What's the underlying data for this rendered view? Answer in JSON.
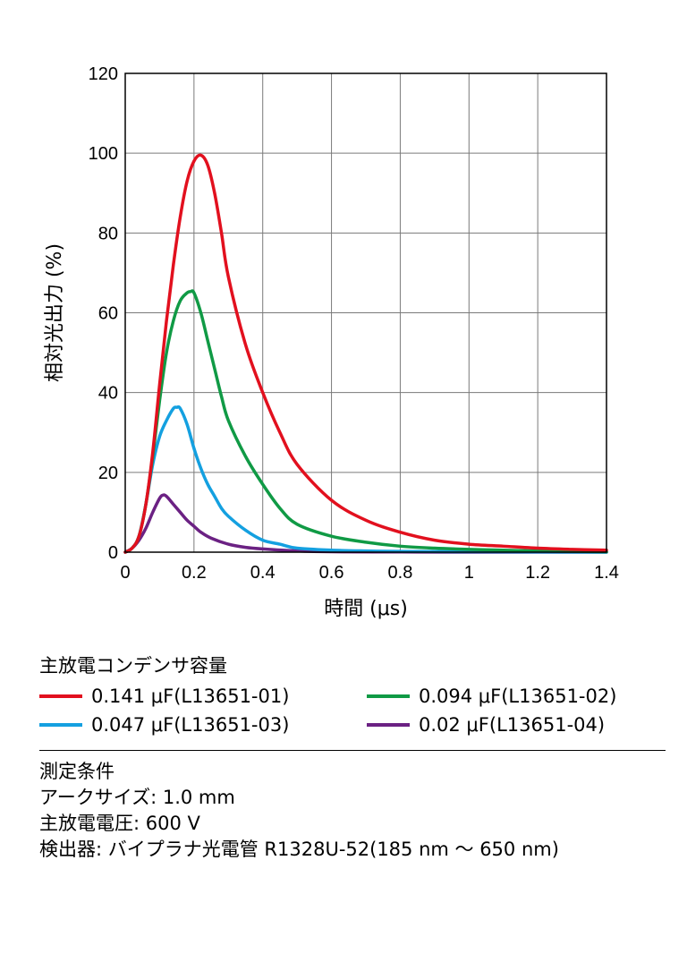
{
  "chart_data": {
    "type": "line",
    "xlabel": "時間 (μs)",
    "ylabel": "相対光出力 (%)",
    "xlim": [
      0,
      1.4
    ],
    "ylim": [
      0,
      120
    ],
    "x_ticks": [
      "0",
      "0.2",
      "0.4",
      "0.6",
      "0.8",
      "1",
      "1.2",
      "1.4"
    ],
    "y_ticks": [
      "0",
      "20",
      "40",
      "60",
      "80",
      "100",
      "120"
    ],
    "grid": true,
    "series": [
      {
        "name": "0.141 μF(L13651-01)",
        "color": "#e2101e",
        "x": [
          0,
          0.02,
          0.04,
          0.06,
          0.08,
          0.1,
          0.12,
          0.14,
          0.16,
          0.18,
          0.2,
          0.22,
          0.24,
          0.26,
          0.28,
          0.3,
          0.35,
          0.4,
          0.45,
          0.5,
          0.6,
          0.7,
          0.8,
          0.9,
          1.0,
          1.1,
          1.2,
          1.3,
          1.4
        ],
        "y": [
          0,
          1,
          4,
          12,
          25,
          42,
          58,
          72,
          84,
          93,
          98,
          99.5,
          97,
          90,
          80,
          69,
          52,
          40,
          30,
          22,
          13,
          8,
          5,
          3,
          2,
          1.5,
          1,
          0.7,
          0.5
        ]
      },
      {
        "name": "0.094 μF(L13651-02)",
        "color": "#109a45",
        "x": [
          0,
          0.02,
          0.04,
          0.06,
          0.08,
          0.1,
          0.12,
          0.14,
          0.16,
          0.18,
          0.19,
          0.2,
          0.22,
          0.24,
          0.26,
          0.28,
          0.3,
          0.35,
          0.4,
          0.45,
          0.5,
          0.6,
          0.7,
          0.8,
          0.9,
          1.0,
          1.1,
          1.2,
          1.3,
          1.4
        ],
        "y": [
          0,
          1,
          4,
          12,
          24,
          38,
          50,
          58,
          63,
          65,
          65.3,
          65,
          60,
          53,
          46,
          39,
          33,
          24,
          17,
          11,
          7,
          4,
          2.5,
          1.5,
          1,
          0.7,
          0.5,
          0.3,
          0.2,
          0.1
        ]
      },
      {
        "name": "0.047 μF(L13651-03)",
        "color": "#14a0e0",
        "x": [
          0,
          0.02,
          0.04,
          0.06,
          0.08,
          0.1,
          0.12,
          0.14,
          0.15,
          0.16,
          0.18,
          0.2,
          0.22,
          0.24,
          0.26,
          0.28,
          0.3,
          0.35,
          0.4,
          0.45,
          0.5,
          0.6,
          0.7,
          0.8,
          1.0,
          1.2,
          1.4
        ],
        "y": [
          0,
          1,
          4,
          12,
          22,
          29,
          33,
          36,
          36.3,
          36,
          32,
          26,
          21,
          17,
          14,
          11,
          9,
          5.5,
          3,
          2,
          1,
          0.5,
          0.3,
          0.2,
          0.1,
          0.05,
          0
        ],
        "_": ""
      },
      {
        "name": "0.02 μF(L13651-04)",
        "color": "#6b2183",
        "x": [
          0,
          0.02,
          0.04,
          0.06,
          0.08,
          0.1,
          0.11,
          0.12,
          0.14,
          0.16,
          0.18,
          0.2,
          0.22,
          0.25,
          0.3,
          0.35,
          0.4,
          0.5,
          0.6,
          0.8,
          1.0,
          1.4
        ],
        "y": [
          0,
          1,
          3,
          6,
          10,
          13.5,
          14.3,
          14,
          12,
          10,
          8,
          6.5,
          5,
          3.5,
          2,
          1.2,
          0.8,
          0.3,
          0.1,
          0.05,
          0,
          0
        ]
      }
    ]
  },
  "legend": {
    "title": "主放電コンデンサ容量"
  },
  "conditions": {
    "heading": "測定条件",
    "arc_size": "アークサイズ: 1.0 mm",
    "voltage": "主放電電圧: 600 V",
    "detector": "検出器: バイプラナ光電管 R1328U-52(185 nm ～ 650 nm)"
  }
}
